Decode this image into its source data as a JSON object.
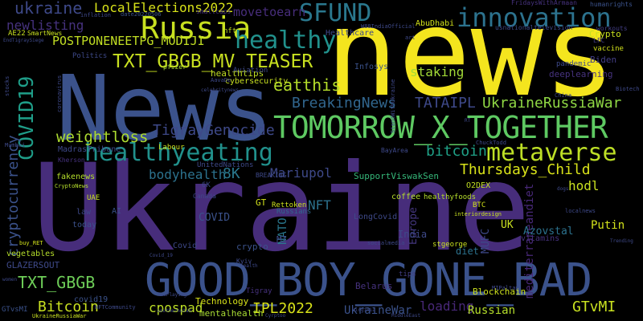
{
  "words": [
    {
      "text": "news",
      "color": "#f4e51e"
    },
    {
      "text": "News",
      "color": "#3b528b"
    },
    {
      "text": "Ukraine",
      "color": "#472d7b"
    },
    {
      "text": "GOOD_BOY_GONE_BAD",
      "color": "#3b528b"
    },
    {
      "text": "TOMORROW_X_TOGETHER",
      "color": "#5ec962"
    },
    {
      "text": "Russia",
      "color": "#c8e020"
    },
    {
      "text": "innovation",
      "color": "#2c728e"
    },
    {
      "text": "healthy",
      "color": "#21918c"
    },
    {
      "text": "SFUND",
      "color": "#2a788e"
    },
    {
      "text": "healthyeating",
      "color": "#21918c"
    },
    {
      "text": "metaverse",
      "color": "#bddf26"
    },
    {
      "text": "COVID19",
      "color": "#1f9e89"
    },
    {
      "text": "TXT_GBGB_MV_TEASER",
      "color": "#c8e020"
    },
    {
      "text": "LocalElections2022",
      "color": "#d8e219"
    },
    {
      "text": "ukraine",
      "color": "#3e4989"
    },
    {
      "text": "newlisting",
      "color": "#46327e"
    },
    {
      "text": "POSTPONENEETPG_MODIJI",
      "color": "#c2df23"
    },
    {
      "text": "movetoearn",
      "color": "#472d7b"
    },
    {
      "text": "staking",
      "color": "#a2da37"
    },
    {
      "text": "eatthis",
      "color": "#b5de2b"
    },
    {
      "text": "BreakingNews",
      "color": "#31668e"
    },
    {
      "text": "TATAIPL",
      "color": "#3e4989"
    },
    {
      "text": "UkraineRussiaWar",
      "color": "#8fd744"
    },
    {
      "text": "TigrayGenocide",
      "color": "#3e4989"
    },
    {
      "text": "weightloss",
      "color": "#addc30"
    },
    {
      "text": "cryptocurrency",
      "color": "#3b528b"
    },
    {
      "text": "bitcoin",
      "color": "#1fa187"
    },
    {
      "text": "Thursdays_Child",
      "color": "#d8e219"
    },
    {
      "text": "bodyhealth",
      "color": "#2c728e"
    },
    {
      "text": "8K",
      "color": "#2a788e"
    },
    {
      "text": "Mariupol",
      "color": "#3e4989"
    },
    {
      "text": "hodl",
      "color": "#c8e020"
    },
    {
      "text": "TXT_GBGB",
      "color": "#6ece58"
    },
    {
      "text": "Bitcoin",
      "color": "#c8e020"
    },
    {
      "text": "IPL2022",
      "color": "#d8e219"
    },
    {
      "text": "cpospad",
      "color": "#bddf26"
    },
    {
      "text": "UkraineWar",
      "color": "#3b528b"
    },
    {
      "text": "loading",
      "color": "#482878"
    },
    {
      "text": "Russian",
      "color": "#b5de2b"
    },
    {
      "text": "GTvMI",
      "color": "#c8e020"
    },
    {
      "text": "mediterraneandiet",
      "color": "#482878"
    },
    {
      "text": "Europe",
      "color": "#453781"
    },
    {
      "text": "India",
      "color": "#3e4989"
    },
    {
      "text": "NATO",
      "color": "#2a788e"
    },
    {
      "text": "NFT",
      "color": "#2c728e"
    },
    {
      "text": "COVID",
      "color": "#3b528b"
    },
    {
      "text": "Putin",
      "color": "#d2e21b"
    },
    {
      "text": "Azovstal",
      "color": "#2c728e"
    },
    {
      "text": "vitamins",
      "color": "#46327e"
    },
    {
      "text": "MUFC",
      "color": "#3e4989"
    },
    {
      "text": "UK",
      "color": "#c8e020"
    },
    {
      "text": "Blockchain",
      "color": "#cde11d"
    },
    {
      "text": "Technology",
      "color": "#d8e219"
    },
    {
      "text": "mentalhealth",
      "color": "#a8db34"
    },
    {
      "text": "GLAZERSOUT",
      "color": "#3e4989"
    },
    {
      "text": "Crypto",
      "color": "#c8e020"
    },
    {
      "text": "Biden",
      "color": "#433e85"
    },
    {
      "text": "deeplearning",
      "color": "#46327e"
    },
    {
      "text": "AbuDhabi",
      "color": "#d2e21b"
    },
    {
      "text": "healthtips",
      "color": "#c2df23"
    },
    {
      "text": "cybersecurity",
      "color": "#c8e020"
    },
    {
      "text": "Healthcare",
      "color": "#3e4989"
    },
    {
      "text": "Labour",
      "color": "#cde11d"
    },
    {
      "text": "SupportViswakSen",
      "color": "#35b779"
    },
    {
      "text": "O2DEX",
      "color": "#c2df23"
    },
    {
      "text": "coffee",
      "color": "#b5de2b"
    },
    {
      "text": "healthyfoods",
      "color": "#b5de2b"
    },
    {
      "text": "diet",
      "color": "#2c728e"
    },
    {
      "text": "crypto",
      "color": "#3b528b"
    },
    {
      "text": "stgeorge",
      "color": "#c8e020"
    },
    {
      "text": "covid19",
      "color": "#3b528b"
    },
    {
      "text": "Tigray",
      "color": "#46327e"
    },
    {
      "text": "Belarus",
      "color": "#46327e"
    },
    {
      "text": "tips",
      "color": "#433e85"
    },
    {
      "text": "vegetables",
      "color": "#b5de2b"
    },
    {
      "text": "law",
      "color": "#3e4989"
    },
    {
      "text": "today",
      "color": "#3b528b"
    },
    {
      "text": "fakenews",
      "color": "#b5de2b"
    },
    {
      "text": "MadrasTribune",
      "color": "#3e4989"
    },
    {
      "text": "GT",
      "color": "#d2e21b"
    },
    {
      "text": "MI",
      "color": "#3e4989"
    },
    {
      "text": "Covid",
      "color": "#3e4989"
    },
    {
      "text": "Russians",
      "color": "#31688e"
    },
    {
      "text": "Rettoken",
      "color": "#cde11d"
    },
    {
      "text": "LongCovid",
      "color": "#3e4989"
    },
    {
      "text": "AI",
      "color": "#3b528b"
    },
    {
      "text": "UAE",
      "color": "#c8e020"
    },
    {
      "text": "pfizer",
      "color": "#a8db34"
    },
    {
      "text": "Aviation",
      "color": "#3e4989"
    },
    {
      "text": "Infosys",
      "color": "#3b528b"
    },
    {
      "text": "nft",
      "color": "#c2df23"
    },
    {
      "text": "Politics",
      "color": "#3e4989"
    },
    {
      "text": "pandemic",
      "color": "#3e4989"
    },
    {
      "text": "vaccine",
      "color": "#d2e21b"
    },
    {
      "text": "LFC",
      "color": "#433e85"
    },
    {
      "text": "workouts",
      "color": "#433e85"
    },
    {
      "text": "humanrights",
      "color": "#3b528b"
    },
    {
      "text": "FridaysWithArmaan",
      "color": "#46327e"
    },
    {
      "text": "usnationaltelevision",
      "color": "#3e4989"
    },
    {
      "text": "smallcaps",
      "color": "#46327e"
    },
    {
      "text": "date20220506",
      "color": "#3b528b"
    },
    {
      "text": "inflation",
      "color": "#3e4989"
    },
    {
      "text": "AE22",
      "color": "#c8e020"
    },
    {
      "text": "SmartNews",
      "color": "#c8e020"
    },
    {
      "text": "EndTigraySiege",
      "color": "#3e4989"
    },
    {
      "text": "W88IndiaOfficial",
      "color": "#3e4989"
    },
    {
      "text": "UnitedNations",
      "color": "#3e4989"
    },
    {
      "text": "BREAKING",
      "color": "#3e4989"
    },
    {
      "text": "BayArea",
      "color": "#3e4989"
    },
    {
      "text": "BTC",
      "color": "#d2e21b"
    },
    {
      "text": "6K",
      "color": "#3e4989"
    },
    {
      "text": "Canada",
      "color": "#3e4989"
    },
    {
      "text": "Kyiv",
      "color": "#3e4989"
    },
    {
      "text": "CryptoNews",
      "color": "#b5de2b"
    },
    {
      "text": "Kherson",
      "color": "#46327e"
    },
    {
      "text": "stocks",
      "color": "#3e4989"
    },
    {
      "text": "coronavirus",
      "color": "#3e4989"
    },
    {
      "text": "buy_RET",
      "color": "#d2e21b"
    },
    {
      "text": "women",
      "color": "#3e4989"
    },
    {
      "text": "NFTCommunity",
      "color": "#3e4989"
    },
    {
      "text": "UkraineRussiaWar",
      "color": "#c8e020"
    },
    {
      "text": "GTvsMI",
      "color": "#3b528b"
    },
    {
      "text": "hoaPlaying",
      "color": "#3e4989"
    },
    {
      "text": "southernutah",
      "color": "#3e4989"
    },
    {
      "text": "Cyrptoo",
      "color": "#3e4989"
    },
    {
      "text": "MiddleEast",
      "color": "#3e4989"
    },
    {
      "text": "Virginia",
      "color": "#3e4989"
    },
    {
      "text": "interiordesign",
      "color": "#c8e020"
    },
    {
      "text": "socialmedia",
      "color": "#3e4989"
    },
    {
      "text": "MIPaltan",
      "color": "#3e4989"
    },
    {
      "text": "localnews",
      "color": "#3e4989"
    },
    {
      "text": "Trending",
      "color": "#3e4989"
    },
    {
      "text": "Covid_19",
      "color": "#3e4989"
    },
    {
      "text": "health",
      "color": "#3e4989"
    },
    {
      "text": "China",
      "color": "#3e4989"
    },
    {
      "text": "dogs",
      "color": "#3e4989"
    },
    {
      "text": "RT",
      "color": "#3e4989"
    },
    {
      "text": "Mumbai",
      "color": "#3e4989"
    },
    {
      "text": "art",
      "color": "#3e4989"
    },
    {
      "text": "StandWithUkraine",
      "color": "#3e4989"
    },
    {
      "text": "celebritynews",
      "color": "#3e4989"
    },
    {
      "text": "AavaDe",
      "color": "#3e4989"
    },
    {
      "text": "ChuckTodd",
      "color": "#3e4989"
    },
    {
      "text": "Biotech",
      "color": "#3e4989"
    }
  ]
}
